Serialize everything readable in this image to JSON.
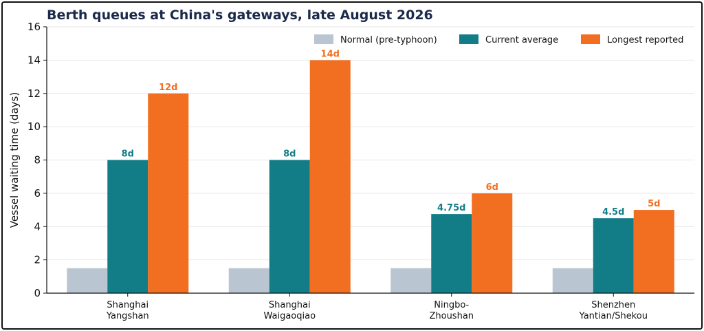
{
  "chart_data": {
    "type": "bar",
    "title": "Berth queues at China's gateways, late August 2026",
    "xlabel": "",
    "ylabel": "Vessel waiting time (days)",
    "ylim": [
      0,
      16
    ],
    "yticks": [
      0,
      2,
      4,
      6,
      8,
      10,
      12,
      14,
      16
    ],
    "grid": "horizontal",
    "legend_position": "top-right",
    "categories": [
      [
        "Shanghai",
        "Yangshan"
      ],
      [
        "Shanghai",
        "Waigaoqiao"
      ],
      [
        "Ningbo-",
        "Zhoushan"
      ],
      [
        "Shenzhen",
        "Yantian/Shekou"
      ]
    ],
    "series": [
      {
        "name": "Normal (pre-typhoon)",
        "color": "#b9c6d2",
        "values": [
          1.5,
          1.5,
          1.5,
          1.5
        ],
        "labels": [
          "",
          "",
          "",
          ""
        ]
      },
      {
        "name": "Current average",
        "color": "#127c87",
        "values": [
          8,
          8,
          4.75,
          4.5
        ],
        "labels": [
          "8d",
          "8d",
          "4.75d",
          "4.5d"
        ]
      },
      {
        "name": "Longest reported",
        "color": "#f26f21",
        "values": [
          12,
          14,
          6,
          5
        ],
        "labels": [
          "12d",
          "14d",
          "6d",
          "5d"
        ]
      }
    ],
    "colors": {
      "title": "#1b2a4a",
      "axis": "#111111",
      "grid": "#e6e6e6"
    }
  }
}
